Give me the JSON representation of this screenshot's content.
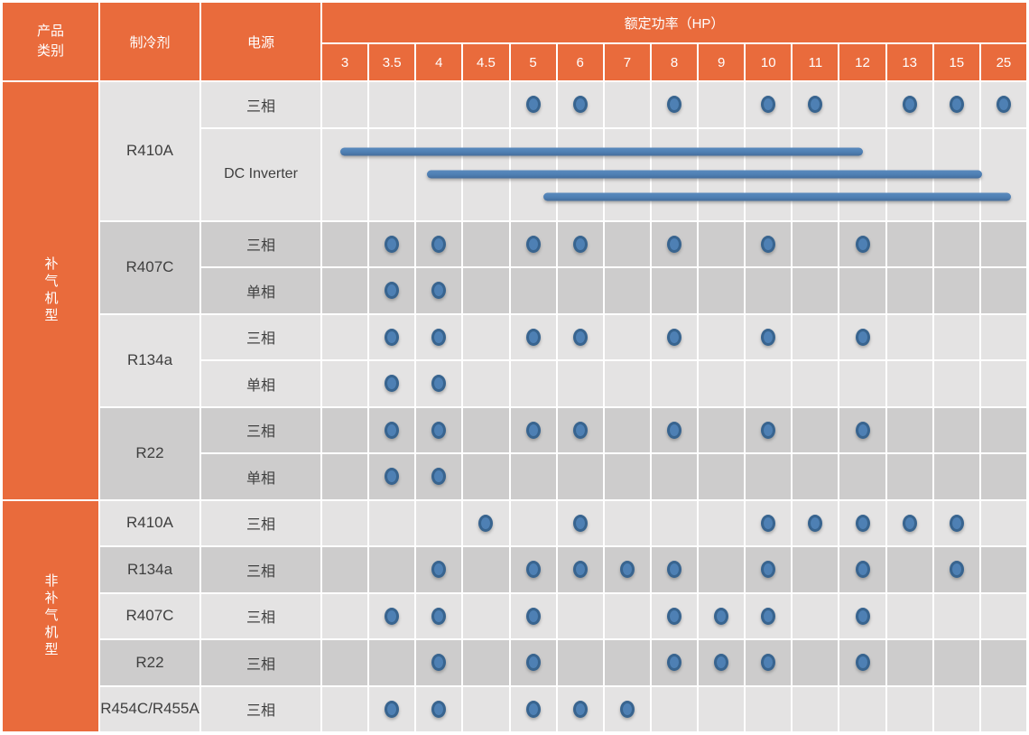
{
  "table": {
    "header": {
      "product_category": "产品类别",
      "refrigerant": "制冷剂",
      "power": "电源",
      "rated_power_title": "额定功率（HP）",
      "hp_columns": [
        "3",
        "3.5",
        "4",
        "4.5",
        "5",
        "6",
        "7",
        "8",
        "9",
        "10",
        "11",
        "12",
        "13",
        "15",
        "25"
      ]
    },
    "groups": [
      {
        "category": "补气机型",
        "refrigerants": [
          {
            "name": "R410A",
            "rows": [
              {
                "power": "三相",
                "type": "dots",
                "dots": [
                  "5",
                  "6",
                  "8",
                  "10",
                  "11",
                  "13",
                  "15",
                  "25"
                ]
              },
              {
                "power": "DC Inverter",
                "type": "bars",
                "bars": [
                  {
                    "hp_range": "3~12",
                    "span": [
                      0.38,
                      11.52
                    ]
                  },
                  {
                    "hp_range": "4~15",
                    "span": [
                      2.24,
                      14.05
                    ]
                  },
                  {
                    "hp_range": "5~25",
                    "span": [
                      4.72,
                      14.68
                    ]
                  }
                ]
              }
            ]
          },
          {
            "name": "R407C",
            "rows": [
              {
                "power": "三相",
                "type": "dots",
                "dots": [
                  "3.5",
                  "4",
                  "5",
                  "6",
                  "8",
                  "10",
                  "12"
                ]
              },
              {
                "power": "单相",
                "type": "dots",
                "dots": [
                  "3.5",
                  "4"
                ]
              }
            ]
          },
          {
            "name": "R134a",
            "rows": [
              {
                "power": "三相",
                "type": "dots",
                "dots": [
                  "3.5",
                  "4",
                  "5",
                  "6",
                  "8",
                  "10",
                  "12"
                ]
              },
              {
                "power": "单相",
                "type": "dots",
                "dots": [
                  "3.5",
                  "4"
                ]
              }
            ]
          },
          {
            "name": "R22",
            "rows": [
              {
                "power": "三相",
                "type": "dots",
                "dots": [
                  "3.5",
                  "4",
                  "5",
                  "6",
                  "8",
                  "10",
                  "12"
                ]
              },
              {
                "power": "单相",
                "type": "dots",
                "dots": [
                  "3.5",
                  "4"
                ]
              }
            ]
          }
        ]
      },
      {
        "category": "非补气机型",
        "refrigerants": [
          {
            "name": "R410A",
            "rows": [
              {
                "power": "三相",
                "type": "dots",
                "dots": [
                  "4.5",
                  "6",
                  "10",
                  "11",
                  "12",
                  "13",
                  "15"
                ]
              }
            ]
          },
          {
            "name": "R134a",
            "rows": [
              {
                "power": "三相",
                "type": "dots",
                "dots": [
                  "4",
                  "5",
                  "6",
                  "7",
                  "8",
                  "10",
                  "12",
                  "15"
                ]
              }
            ]
          },
          {
            "name": "R407C",
            "rows": [
              {
                "power": "三相",
                "type": "dots",
                "dots": [
                  "3.5",
                  "4",
                  "5",
                  "8",
                  "9",
                  "10",
                  "12"
                ]
              }
            ]
          },
          {
            "name": "R22",
            "rows": [
              {
                "power": "三相",
                "type": "dots",
                "dots": [
                  "4",
                  "5",
                  "8",
                  "9",
                  "10",
                  "12"
                ]
              }
            ]
          },
          {
            "name": "R454C/R455A",
            "rows": [
              {
                "power": "三相",
                "type": "dots",
                "dots": [
                  "3.5",
                  "4",
                  "5",
                  "6",
                  "7"
                ]
              }
            ]
          }
        ]
      }
    ]
  },
  "colors": {
    "accent_orange": "#E96B3C",
    "row_light": "#E4E3E3",
    "row_dark": "#CDCCCC",
    "dot_fill": "#4E80B4",
    "dot_ring": "#38648F",
    "bar_blue": "#4E7FB3",
    "grid_white": "#FFFFFF",
    "body_text": "#3F3F3F",
    "header_text": "#FFFFFF"
  }
}
